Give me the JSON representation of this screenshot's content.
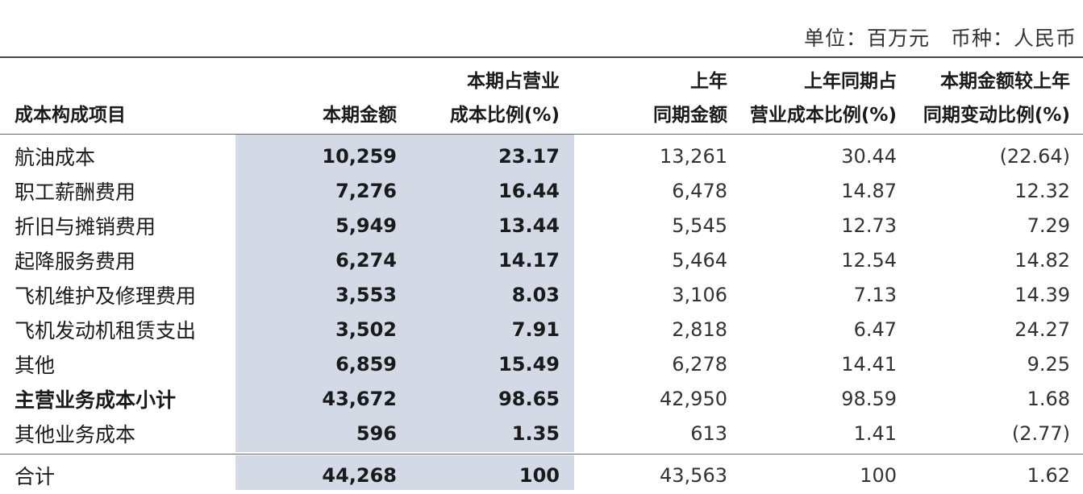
{
  "unit": {
    "unit_label": "单位：百万元",
    "currency_label": "币种：人民币"
  },
  "headers": {
    "item": "成本构成项目",
    "current_amount": "本期金额",
    "current_pct_line1": "本期占营业",
    "current_pct_line2": "成本比例(%)",
    "prev_amount_line1": "上年",
    "prev_amount_line2": "同期金额",
    "prev_pct_line1": "上年同期占",
    "prev_pct_line2": "营业成本比例(%)",
    "change_line1": "本期金额较上年",
    "change_line2": "同期变动比例(%)"
  },
  "rows": [
    {
      "name": "航油成本",
      "current": "10,259",
      "current_pct": "23.17",
      "prev": "13,261",
      "prev_pct": "30.44",
      "change": "(22.64)"
    },
    {
      "name": "职工薪酬费用",
      "current": "7,276",
      "current_pct": "16.44",
      "prev": "6,478",
      "prev_pct": "14.87",
      "change": "12.32"
    },
    {
      "name": "折旧与摊销费用",
      "current": "5,949",
      "current_pct": "13.44",
      "prev": "5,545",
      "prev_pct": "12.73",
      "change": "7.29"
    },
    {
      "name": "起降服务费用",
      "current": "6,274",
      "current_pct": "14.17",
      "prev": "5,464",
      "prev_pct": "12.54",
      "change": "14.82"
    },
    {
      "name": "飞机维护及修理费用",
      "current": "3,553",
      "current_pct": "8.03",
      "prev": "3,106",
      "prev_pct": "7.13",
      "change": "14.39"
    },
    {
      "name": "飞机发动机租赁支出",
      "current": "3,502",
      "current_pct": "7.91",
      "prev": "2,818",
      "prev_pct": "6.47",
      "change": "24.27"
    },
    {
      "name": "其他",
      "current": "6,859",
      "current_pct": "15.49",
      "prev": "6,278",
      "prev_pct": "14.41",
      "change": "9.25"
    },
    {
      "name": "主营业务成本小计",
      "current": "43,672",
      "current_pct": "98.65",
      "prev": "42,950",
      "prev_pct": "98.59",
      "change": "1.68"
    },
    {
      "name": "其他业务成本",
      "current": "596",
      "current_pct": "1.35",
      "prev": "613",
      "prev_pct": "1.41",
      "change": "(2.77)"
    },
    {
      "name": "合计",
      "current": "44,268",
      "current_pct": "100",
      "prev": "43,563",
      "prev_pct": "100",
      "change": "1.62"
    }
  ]
}
